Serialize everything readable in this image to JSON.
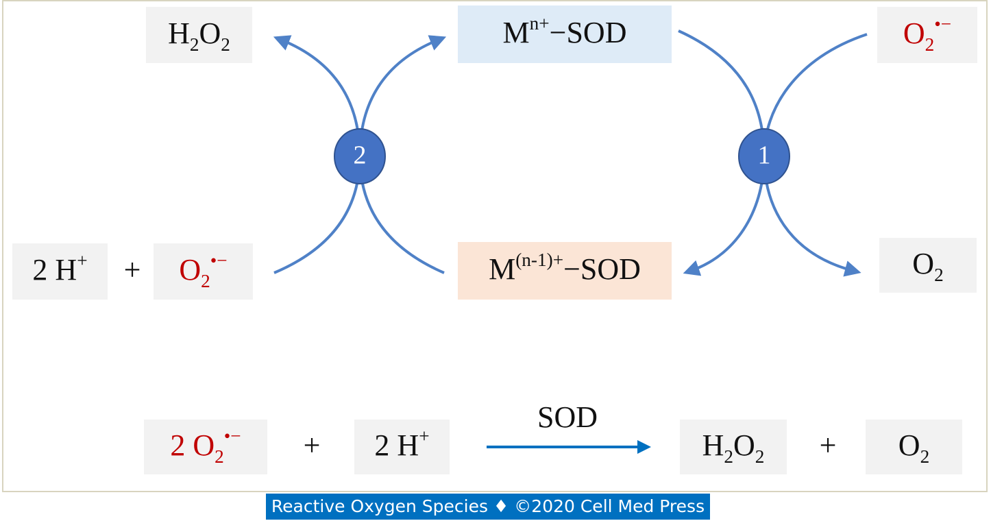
{
  "nodes": [
    {
      "parts": [
        {
          "text": "H"
        },
        {
          "text": "2",
          "shift": "sub"
        },
        {
          "text": "O"
        },
        {
          "text": "2",
          "shift": "sub"
        }
      ]
    },
    {
      "parts": [
        {
          "text": "M"
        },
        {
          "text": "n+",
          "shift": "super"
        },
        {
          "text": "−SOD"
        }
      ]
    },
    {
      "color": "#c00000",
      "parts": [
        {
          "text": "O"
        },
        {
          "text": "2",
          "shift": "sub"
        },
        {
          "text": "•−",
          "shift": "super"
        }
      ]
    },
    {
      "parts": [
        {
          "text": "2 H"
        },
        {
          "text": "+",
          "shift": "super"
        }
      ]
    },
    {
      "parts": [
        {
          "text": "+"
        }
      ]
    },
    {
      "color": "#c00000",
      "parts": [
        {
          "text": "O"
        },
        {
          "text": "2",
          "shift": "sub"
        },
        {
          "text": "•−",
          "shift": "super"
        }
      ]
    },
    {
      "parts": [
        {
          "text": "M"
        },
        {
          "text": "(n-1)+",
          "shift": "super"
        },
        {
          "text": "−SOD"
        }
      ]
    },
    {
      "parts": [
        {
          "text": "O"
        },
        {
          "text": "2",
          "shift": "sub"
        }
      ]
    }
  ],
  "steps": [
    "2",
    "1"
  ],
  "equation": {
    "catalyst": "SOD",
    "terms": [
      {
        "color": "#c00000",
        "parts": [
          {
            "text": "2 O"
          },
          {
            "text": "2",
            "shift": "sub"
          },
          {
            "text": "•−",
            "shift": "super"
          }
        ]
      },
      {
        "parts": [
          {
            "text": "+"
          }
        ]
      },
      {
        "parts": [
          {
            "text": "2 H"
          },
          {
            "text": "+",
            "shift": "super"
          }
        ]
      },
      {
        "parts": [
          {
            "text": "H"
          },
          {
            "text": "2",
            "shift": "sub"
          },
          {
            "text": "O"
          },
          {
            "text": "2",
            "shift": "sub"
          }
        ]
      },
      {
        "parts": [
          {
            "text": "+"
          }
        ]
      },
      {
        "parts": [
          {
            "text": "O"
          },
          {
            "text": "2",
            "shift": "sub"
          }
        ]
      }
    ]
  },
  "footer": "Reactive Oxygen Species ♦ ©2020 Cell Med Press"
}
